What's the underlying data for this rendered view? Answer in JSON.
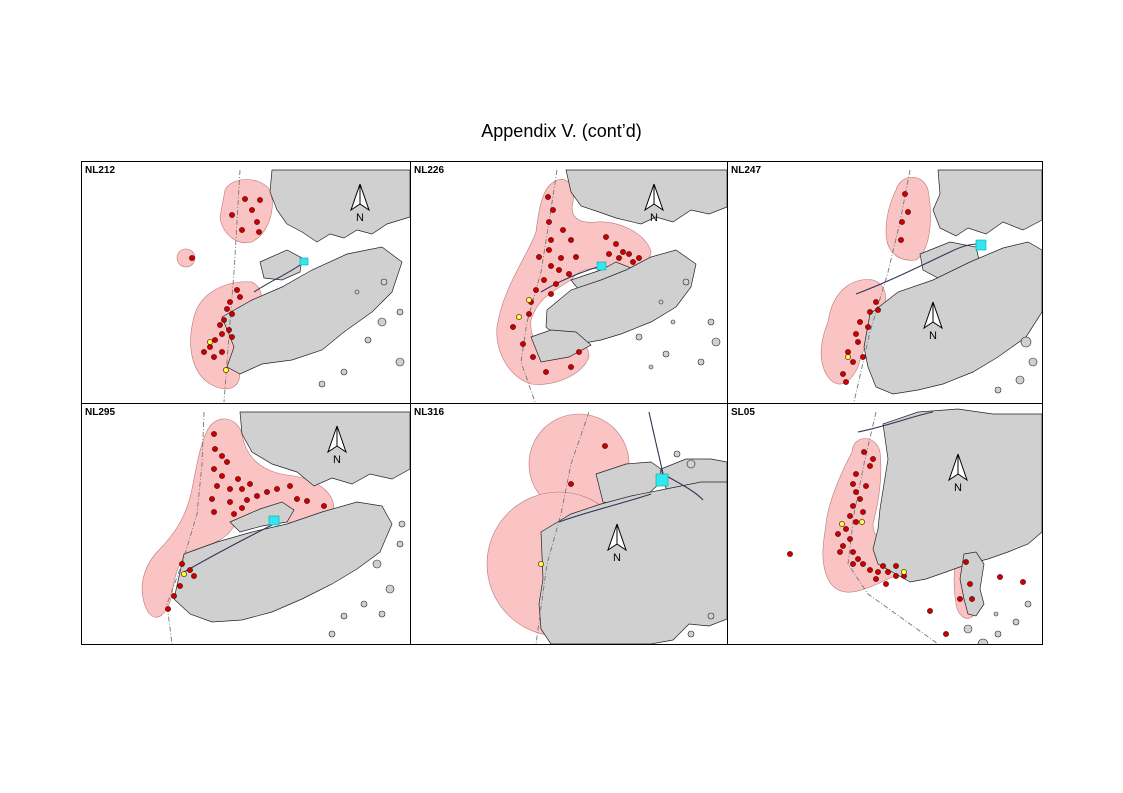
{
  "page": {
    "title": "Appendix V.  (cont’d)"
  },
  "north_label": "N",
  "colors": {
    "land": "#d0d0d0",
    "range": "#fbc4c4",
    "location": "#cc0000",
    "location_alt": "#ffff44",
    "terminal": "#33e6f0",
    "boundary": "#777777"
  },
  "panels": [
    {
      "id": "NL212"
    },
    {
      "id": "NL226"
    },
    {
      "id": "NL247"
    },
    {
      "id": "NL295"
    },
    {
      "id": "NL316"
    },
    {
      "id": "SL05"
    }
  ]
}
